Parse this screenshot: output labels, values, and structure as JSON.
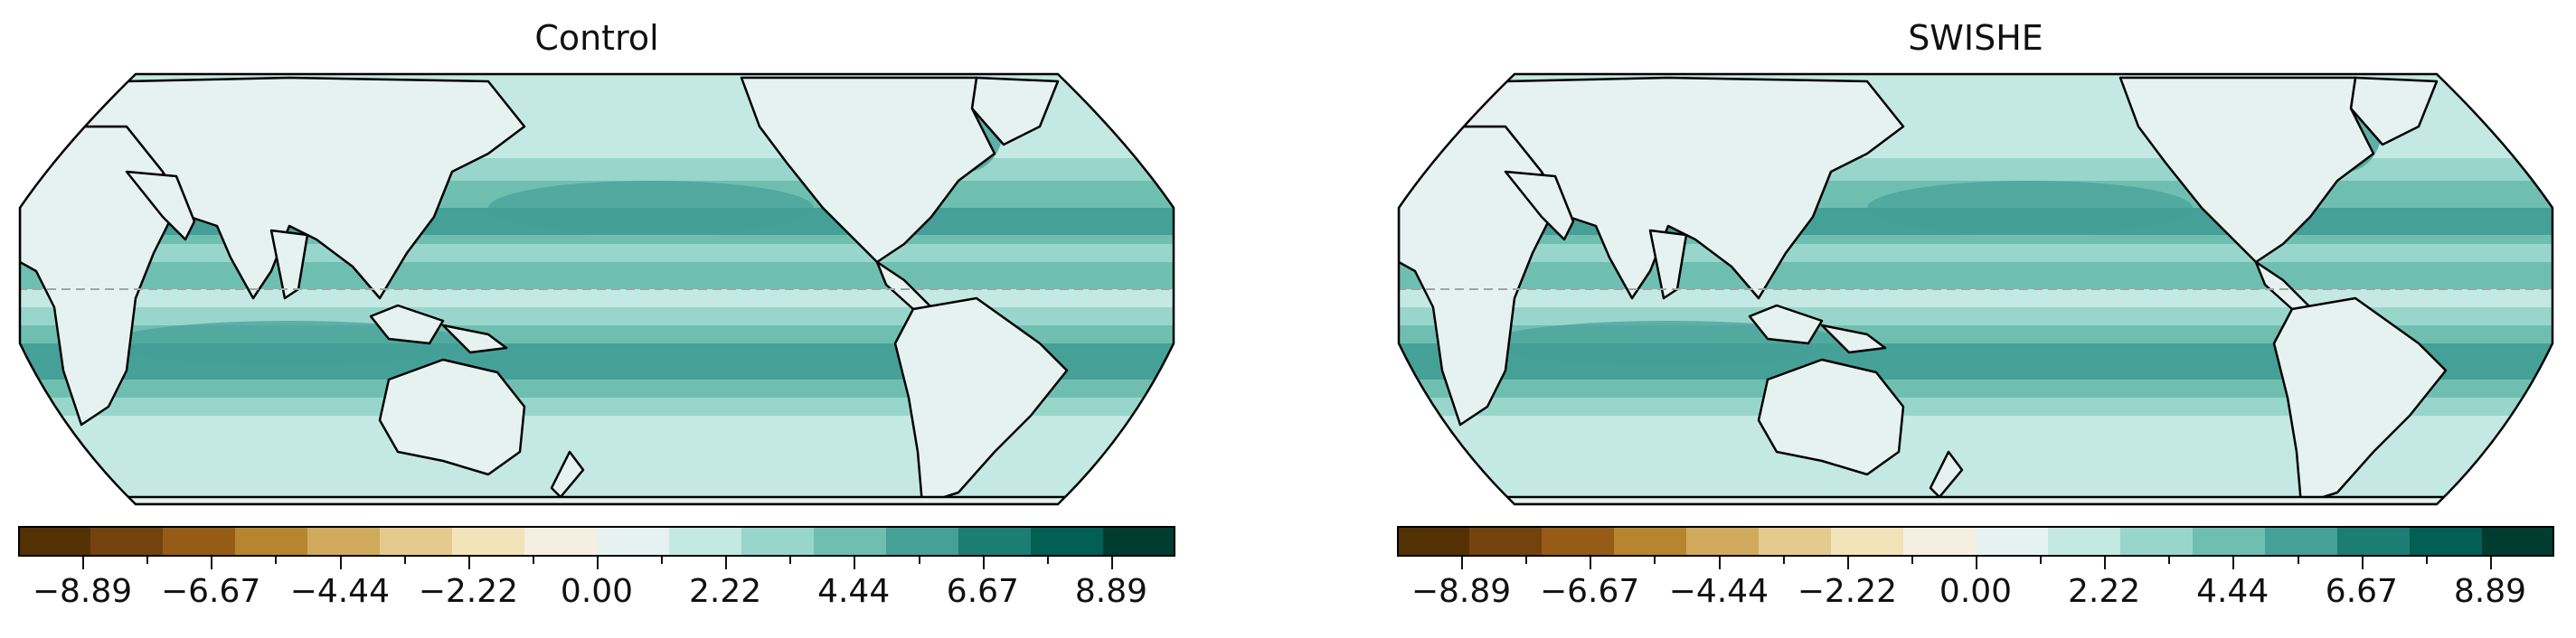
{
  "panels": [
    {
      "title": "Control"
    },
    {
      "title": "SWISHE"
    }
  ],
  "colorbar": {
    "colors": [
      "#543005",
      "#74420c",
      "#965b17",
      "#b8852f",
      "#d1aa5e",
      "#e4cb8d",
      "#f3e3b9",
      "#f5efe1",
      "#e6f2f0",
      "#c4e8e2",
      "#98d6cb",
      "#6fbfb1",
      "#45a097",
      "#1c7d74",
      "#015f53",
      "#003c30"
    ],
    "min": -10,
    "max": 10,
    "major_ticks": [
      "−8.89",
      "−6.67",
      "−4.44",
      "−2.22",
      "0.00",
      "2.22",
      "4.44",
      "6.67",
      "8.89"
    ],
    "major_values": [
      -8.89,
      -6.67,
      -4.44,
      -2.22,
      0.0,
      2.22,
      4.44,
      6.67,
      8.89
    ],
    "minor_values": [
      -7.78,
      -5.56,
      -3.33,
      -1.11,
      1.11,
      3.33,
      5.56,
      7.78
    ]
  },
  "map_colors": {
    "ocean_light": "#c4e8e2",
    "ocean_mid": "#98d6cb",
    "ocean_dark": "#6fbfb1",
    "ocean_deep": "#45a097",
    "land": "#e6f2f0",
    "land_alt": "#d4ece8",
    "coast": "#000000",
    "equator": "#9aa9a6"
  }
}
